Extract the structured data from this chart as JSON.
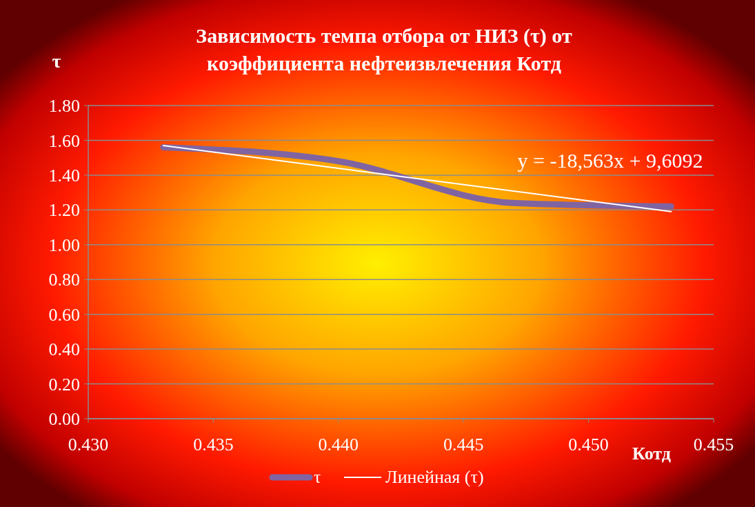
{
  "chart_data": {
    "type": "line",
    "title": "Зависимость темпа отбора от НИЗ (τ) от\nкоэффициента нефтеизвлечения Котд",
    "xlabel": "Котд",
    "ylabel": "τ",
    "series": [
      {
        "name": "τ",
        "color": "#8064a2",
        "x": [
          0.433,
          0.44,
          0.447,
          0.4533
        ],
        "values": [
          1.56,
          1.48,
          1.24,
          1.22
        ]
      },
      {
        "name": "Линейная (τ)",
        "color": "#ffffff",
        "x": [
          0.433,
          0.4533
        ],
        "values": [
          1.57,
          1.19
        ]
      }
    ],
    "annotations": [
      "y = -18,563x + 9,6092"
    ],
    "xlim": [
      0.43,
      0.455
    ],
    "xticks": [
      {
        "value": 0.43,
        "label": "0.430"
      },
      {
        "value": 0.435,
        "label": "0.435"
      },
      {
        "value": 0.44,
        "label": "0.440"
      },
      {
        "value": 0.445,
        "label": "0.445"
      },
      {
        "value": 0.45,
        "label": "0.450"
      },
      {
        "value": 0.455,
        "label": "0.455"
      }
    ],
    "ylim": [
      0,
      1.8
    ],
    "yticks": [
      {
        "value": 0,
        "label": "0.00"
      },
      {
        "value": 0.2,
        "label": "0.20"
      },
      {
        "value": 0.4,
        "label": "0.40"
      },
      {
        "value": 0.6,
        "label": "0.60"
      },
      {
        "value": 0.8,
        "label": "0.80"
      },
      {
        "value": 1,
        "label": "1.00"
      },
      {
        "value": 1.2,
        "label": "1.20"
      },
      {
        "value": 1.4,
        "label": "1.40"
      },
      {
        "value": 1.6,
        "label": "1.60"
      },
      {
        "value": 1.8,
        "label": "1.80"
      }
    ],
    "grid": "y",
    "legend": "bottom"
  }
}
